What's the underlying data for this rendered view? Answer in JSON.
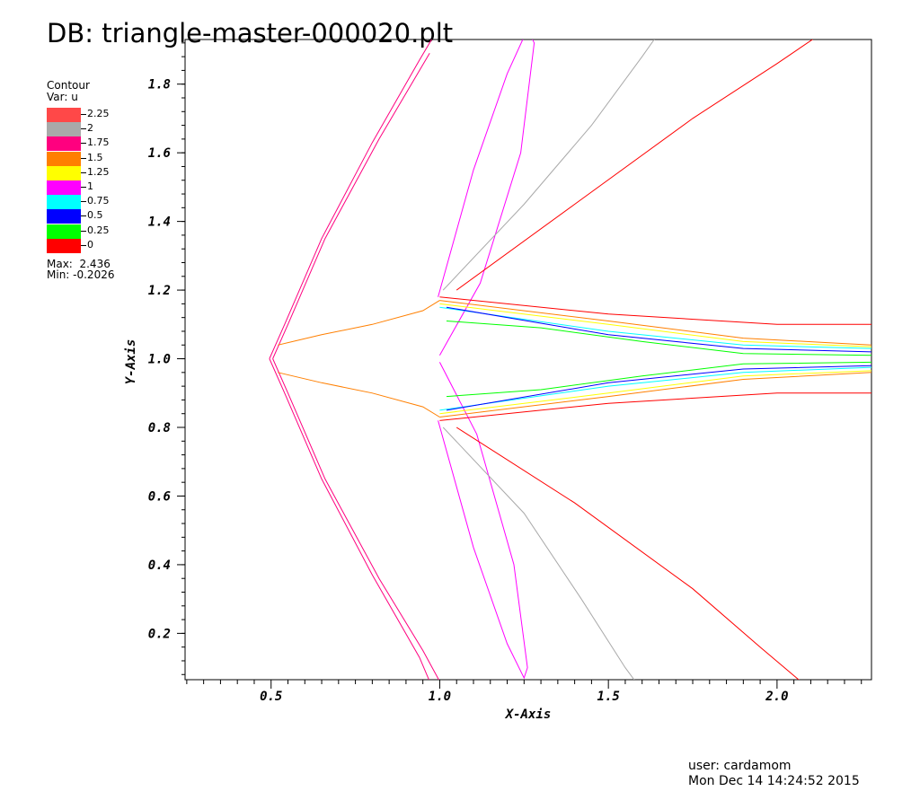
{
  "header": {
    "title": "DB: triangle-master-000020.plt"
  },
  "legend": {
    "heading": "Contour",
    "variable": "Var: u",
    "items": [
      {
        "label": "2.25",
        "color": "#ff4848"
      },
      {
        "label": "2",
        "color": "#a9a9a9"
      },
      {
        "label": "1.75",
        "color": "#ff007f"
      },
      {
        "label": "1.5",
        "color": "#ff7f00"
      },
      {
        "label": "1.25",
        "color": "#ffff00"
      },
      {
        "label": "1",
        "color": "#ff00ff"
      },
      {
        "label": "0.75",
        "color": "#00ffff"
      },
      {
        "label": "0.5",
        "color": "#0000ff"
      },
      {
        "label": "0.25",
        "color": "#00ff00"
      },
      {
        "label": "0",
        "color": "#ff0000"
      }
    ],
    "max_text": "Max:  2.436",
    "min_text": "Min: -0.2026"
  },
  "footer": {
    "user": "user: cardamom",
    "timestamp": "Mon Dec 14 14:24:52 2015"
  },
  "chart_data": {
    "type": "contour",
    "title": "DB: triangle-master-000020.plt",
    "variable": "u",
    "xlabel": "X-Axis",
    "ylabel": "Y-Axis",
    "xlim": [
      0.245,
      2.28
    ],
    "ylim": [
      0.065,
      1.93
    ],
    "xticks": [
      0.5,
      1.0,
      1.5,
      2.0
    ],
    "xtick_labels": [
      "0.5",
      "1.0",
      "1.5",
      "2.0"
    ],
    "yticks": [
      0.2,
      0.4,
      0.6,
      0.8,
      1.0,
      1.2,
      1.4,
      1.6,
      1.8
    ],
    "ytick_labels": [
      "0.2",
      "0.4",
      "0.6",
      "0.8",
      "1.0",
      "1.2",
      "1.4",
      "1.6",
      "1.8"
    ],
    "levels": [
      0,
      0.25,
      0.5,
      0.75,
      1,
      1.25,
      1.5,
      1.75,
      2,
      2.25
    ],
    "max": 2.436,
    "min": -0.2026,
    "contours": [
      {
        "level": 1.75,
        "color": "#ff007f",
        "points": [
          [
            0.495,
            1.0
          ],
          [
            0.54,
            1.1
          ],
          [
            0.65,
            1.35
          ],
          [
            0.8,
            1.63
          ],
          [
            0.94,
            1.87
          ],
          [
            1.0,
            1.97
          ]
        ]
      },
      {
        "level": 1.75,
        "color": "#ff007f",
        "points": [
          [
            0.505,
            1.0
          ],
          [
            0.55,
            1.1
          ],
          [
            0.66,
            1.35
          ],
          [
            0.82,
            1.64
          ],
          [
            0.97,
            1.89
          ]
        ]
      },
      {
        "level": 1.75,
        "color": "#ff007f",
        "points": [
          [
            0.495,
            1.0
          ],
          [
            0.54,
            0.9
          ],
          [
            0.65,
            0.65
          ],
          [
            0.8,
            0.37
          ],
          [
            0.94,
            0.13
          ],
          [
            0.97,
            0.06
          ]
        ]
      },
      {
        "level": 1.75,
        "color": "#ff007f",
        "points": [
          [
            0.505,
            1.0
          ],
          [
            0.55,
            0.9
          ],
          [
            0.66,
            0.65
          ],
          [
            0.82,
            0.36
          ],
          [
            0.95,
            0.15
          ],
          [
            1.0,
            0.06
          ]
        ]
      },
      {
        "level": 1.0,
        "color": "#ff00ff",
        "points": [
          [
            0.995,
            1.18
          ],
          [
            1.1,
            1.55
          ],
          [
            1.2,
            1.83
          ],
          [
            1.26,
            1.96
          ],
          [
            1.28,
            1.92
          ],
          [
            1.24,
            1.6
          ],
          [
            1.12,
            1.22
          ],
          [
            1.0,
            1.01
          ]
        ]
      },
      {
        "level": 1.0,
        "color": "#ff00ff",
        "points": [
          [
            0.995,
            0.82
          ],
          [
            1.1,
            0.45
          ],
          [
            1.2,
            0.17
          ],
          [
            1.25,
            0.07
          ],
          [
            1.26,
            0.1
          ],
          [
            1.22,
            0.4
          ],
          [
            1.11,
            0.78
          ],
          [
            1.0,
            0.99
          ]
        ]
      },
      {
        "level": 2.0,
        "color": "#a9a9a9",
        "points": [
          [
            1.01,
            1.2
          ],
          [
            1.25,
            1.45
          ],
          [
            1.45,
            1.68
          ],
          [
            1.6,
            1.88
          ],
          [
            1.65,
            1.95
          ]
        ]
      },
      {
        "level": 2.0,
        "color": "#a9a9a9",
        "points": [
          [
            1.01,
            0.8
          ],
          [
            1.25,
            0.55
          ],
          [
            1.42,
            0.3
          ],
          [
            1.55,
            0.1
          ],
          [
            1.58,
            0.06
          ]
        ]
      },
      {
        "level": 0.0,
        "color": "#ff0000",
        "points": [
          [
            1.05,
            1.2
          ],
          [
            1.4,
            1.45
          ],
          [
            1.75,
            1.7
          ],
          [
            2.0,
            1.86
          ],
          [
            2.15,
            1.96
          ]
        ]
      },
      {
        "level": 0.0,
        "color": "#ff0000",
        "points": [
          [
            1.05,
            0.8
          ],
          [
            1.4,
            0.58
          ],
          [
            1.75,
            0.33
          ],
          [
            1.95,
            0.16
          ],
          [
            2.07,
            0.06
          ]
        ]
      },
      {
        "level": 1.5,
        "color": "#ff7f00",
        "points": [
          [
            0.52,
            1.04
          ],
          [
            0.65,
            1.07
          ],
          [
            0.8,
            1.1
          ],
          [
            0.95,
            1.14
          ],
          [
            1.0,
            1.17
          ]
        ]
      },
      {
        "level": 1.5,
        "color": "#ff7f00",
        "points": [
          [
            0.52,
            0.96
          ],
          [
            0.65,
            0.93
          ],
          [
            0.8,
            0.9
          ],
          [
            0.95,
            0.86
          ],
          [
            1.0,
            0.83
          ]
        ]
      },
      {
        "level": 1.5,
        "color": "#ff7f00",
        "points": [
          [
            1.0,
            1.17
          ],
          [
            1.5,
            1.11
          ],
          [
            1.9,
            1.06
          ],
          [
            2.28,
            1.04
          ]
        ]
      },
      {
        "level": 1.5,
        "color": "#ff7f00",
        "points": [
          [
            1.0,
            0.83
          ],
          [
            1.5,
            0.89
          ],
          [
            1.9,
            0.94
          ],
          [
            2.28,
            0.96
          ]
        ]
      },
      {
        "level": 1.25,
        "color": "#ffff00",
        "points": [
          [
            1.0,
            1.16
          ],
          [
            1.5,
            1.1
          ],
          [
            1.9,
            1.05
          ],
          [
            2.28,
            1.035
          ]
        ]
      },
      {
        "level": 1.25,
        "color": "#ffff00",
        "points": [
          [
            1.0,
            0.84
          ],
          [
            1.5,
            0.9
          ],
          [
            1.9,
            0.95
          ],
          [
            2.28,
            0.965
          ]
        ]
      },
      {
        "level": 0.75,
        "color": "#00ffff",
        "points": [
          [
            1.0,
            1.15
          ],
          [
            1.5,
            1.08
          ],
          [
            1.9,
            1.04
          ],
          [
            2.28,
            1.03
          ]
        ]
      },
      {
        "level": 0.75,
        "color": "#00ffff",
        "points": [
          [
            1.0,
            0.85
          ],
          [
            1.5,
            0.92
          ],
          [
            1.9,
            0.96
          ],
          [
            2.28,
            0.975
          ]
        ]
      },
      {
        "level": 0.5,
        "color": "#0000ff",
        "points": [
          [
            1.02,
            1.15
          ],
          [
            1.5,
            1.07
          ],
          [
            1.9,
            1.03
          ],
          [
            2.28,
            1.02
          ]
        ]
      },
      {
        "level": 0.5,
        "color": "#0000ff",
        "points": [
          [
            1.02,
            0.85
          ],
          [
            1.5,
            0.93
          ],
          [
            1.9,
            0.97
          ],
          [
            2.28,
            0.98
          ]
        ]
      },
      {
        "level": 0.25,
        "color": "#00ff00",
        "points": [
          [
            1.02,
            1.11
          ],
          [
            1.3,
            1.09
          ],
          [
            1.6,
            1.05
          ],
          [
            1.9,
            1.015
          ],
          [
            2.28,
            1.01
          ]
        ]
      },
      {
        "level": 0.25,
        "color": "#00ff00",
        "points": [
          [
            1.02,
            0.89
          ],
          [
            1.3,
            0.91
          ],
          [
            1.6,
            0.95
          ],
          [
            1.9,
            0.985
          ],
          [
            2.28,
            0.99
          ]
        ]
      },
      {
        "level": 0.0,
        "color": "#ff0000",
        "points": [
          [
            1.0,
            1.18
          ],
          [
            1.5,
            1.13
          ],
          [
            2.0,
            1.1
          ],
          [
            2.28,
            1.1
          ]
        ]
      },
      {
        "level": 0.0,
        "color": "#ff0000",
        "points": [
          [
            1.0,
            0.82
          ],
          [
            1.5,
            0.87
          ],
          [
            2.0,
            0.9
          ],
          [
            2.28,
            0.9
          ]
        ]
      }
    ]
  }
}
